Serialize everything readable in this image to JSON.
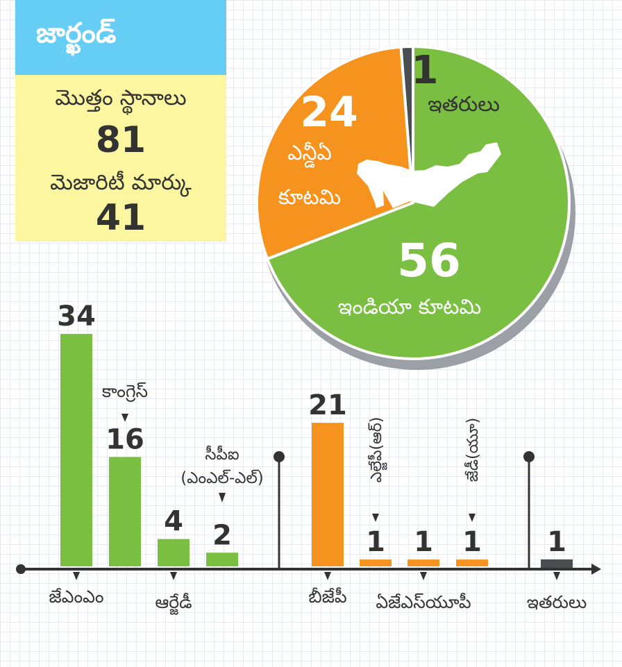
{
  "colors": {
    "green": "#7abf42",
    "orange": "#f6921e",
    "dark": "#4a4d52",
    "text": "#333333",
    "title_bg": "#66cdf4",
    "info_bg": "#fdf6a0",
    "map": "#ffffff"
  },
  "header": {
    "title": "జార్ఖండ్",
    "total_label": "మొత్తం స్థానాలు",
    "total_value": "81",
    "majority_label": "మెజారిటీ మార్కు",
    "majority_value": "41"
  },
  "chart_data": [
    {
      "type": "pie",
      "slices": [
        {
          "value": 56,
          "label": "ఇండియా కూటమి",
          "color": "#7abf42"
        },
        {
          "value": 24,
          "label": "ఎన్డీఏ కూటమి",
          "color": "#f6921e"
        },
        {
          "value": 1,
          "label": "ఇతరులు",
          "color": "#4a4d52"
        }
      ]
    },
    {
      "type": "bar",
      "categories": [
        "జేఎంఎం",
        "కాంగ్రెస్",
        "ఆర్జేడీ",
        "సీపీఐ (ఎంఎల్-ఎల్)",
        "బీజేపీ",
        "ఎల్జేపీ(ఆర్)",
        "ఏజేఎస్‌యూపీ",
        "జేడీ(యూ)",
        "ఇతరులు"
      ],
      "values": [
        34,
        16,
        4,
        2,
        21,
        1,
        1,
        1,
        1
      ],
      "groups": [
        "green",
        "green",
        "green",
        "green",
        "orange",
        "orange",
        "orange",
        "orange",
        "dark"
      ]
    }
  ]
}
